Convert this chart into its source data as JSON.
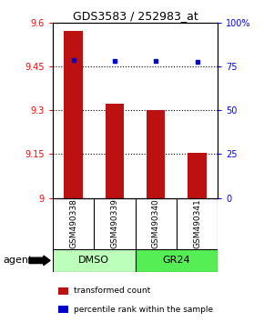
{
  "title": "GDS3583 / 252983_at",
  "samples": [
    "GSM490338",
    "GSM490339",
    "GSM490340",
    "GSM490341"
  ],
  "bar_values": [
    9.572,
    9.322,
    9.3,
    9.155
  ],
  "percentile_values": [
    78.5,
    78.0,
    78.0,
    77.5
  ],
  "bar_color": "#bb1111",
  "dot_color": "#0000cc",
  "ylim_left": [
    9.0,
    9.6
  ],
  "ylim_right": [
    0,
    100
  ],
  "yticks_left": [
    9.0,
    9.15,
    9.3,
    9.45,
    9.6
  ],
  "ytick_labels_left": [
    "9",
    "9.15",
    "9.3",
    "9.45",
    "9.6"
  ],
  "yticks_right": [
    0,
    25,
    50,
    75,
    100
  ],
  "ytick_labels_right": [
    "0",
    "25",
    "50",
    "75",
    "100%"
  ],
  "hlines": [
    9.15,
    9.3,
    9.45
  ],
  "groups": [
    {
      "label": "DMSO",
      "indices": [
        0,
        1
      ],
      "color": "#bbffbb"
    },
    {
      "label": "GR24",
      "indices": [
        2,
        3
      ],
      "color": "#55ee55"
    }
  ],
  "group_row_label": "agent",
  "legend_bar_label": "transformed count",
  "legend_dot_label": "percentile rank within the sample",
  "bar_width": 0.45,
  "background_sample_row": "#cccccc"
}
